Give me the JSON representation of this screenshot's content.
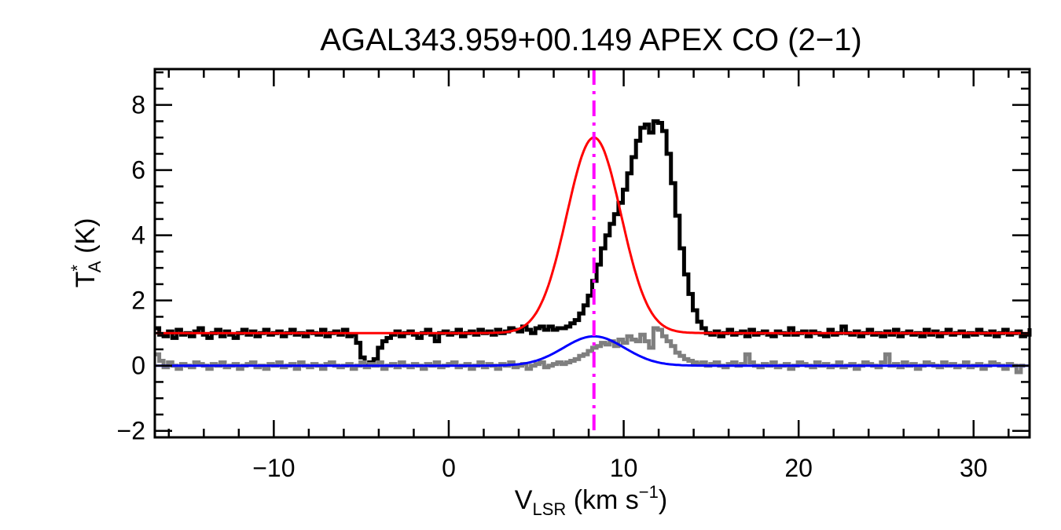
{
  "chart_data": {
    "type": "line",
    "title": "AGAL343.959+00.149  APEX CO (2−1)",
    "xlabel": {
      "main": "V",
      "sub": "LSR",
      "rest": " (km s",
      "sup": "−1",
      "end": ")"
    },
    "ylabel": {
      "main": "T",
      "sup": "*",
      "sub": "A",
      "rest": " (K)"
    },
    "xlim": [
      -16.8,
      33.2
    ],
    "ylim": [
      -2.2,
      9.1
    ],
    "xticks": [
      -10,
      0,
      10,
      20,
      30
    ],
    "xtick_labels": [
      "−10",
      "0",
      "10",
      "20",
      "30"
    ],
    "yticks": [
      -2,
      0,
      2,
      4,
      6,
      8
    ],
    "ytick_labels": [
      "−2",
      "0",
      "2",
      "4",
      "6",
      "8"
    ],
    "x_minor_step": 2,
    "y_minor_step": 0.5,
    "grid": false,
    "vline": {
      "x": 8.3,
      "color": "#ff00ff",
      "style": "dash-dot"
    },
    "series": [
      {
        "role": "spectrum-upper",
        "style": "step",
        "color": "#000000",
        "x_start": -16.8,
        "dx": 0.25,
        "values": [
          1.15,
          0.95,
          0.9,
          1.05,
          0.85,
          1.1,
          0.95,
          1.0,
          0.9,
          1.05,
          1.15,
          0.95,
          0.85,
          1.0,
          1.1,
          0.9,
          1.05,
          0.95,
          0.85,
          1.0,
          1.1,
          0.95,
          1.05,
          0.9,
          1.0,
          1.1,
          0.95,
          1.0,
          1.05,
          0.9,
          1.0,
          1.1,
          0.95,
          1.0,
          0.9,
          1.05,
          1.0,
          0.95,
          1.1,
          0.9,
          1.0,
          1.05,
          0.95,
          1.1,
          0.9,
          0.95,
          0.7,
          0.25,
          0.0,
          0.1,
          0.2,
          0.55,
          0.75,
          0.85,
          0.95,
          1.05,
          0.9,
          1.0,
          1.05,
          0.95,
          0.85,
          1.0,
          1.1,
          0.95,
          0.75,
          1.0,
          1.05,
          0.95,
          1.0,
          1.1,
          0.9,
          1.0,
          1.05,
          0.95,
          1.1,
          1.0,
          1.05,
          0.95,
          1.1,
          1.0,
          1.05,
          1.15,
          1.1,
          1.05,
          1.2,
          1.1,
          1.0,
          1.15,
          1.2,
          1.1,
          1.2,
          1.1,
          1.15,
          1.15,
          1.2,
          1.3,
          1.4,
          1.6,
          1.85,
          2.15,
          2.6,
          3.1,
          3.6,
          4.0,
          4.35,
          4.65,
          5.0,
          5.4,
          5.9,
          6.4,
          6.9,
          7.3,
          7.4,
          7.15,
          7.5,
          7.45,
          7.2,
          6.5,
          5.6,
          4.6,
          3.6,
          2.8,
          2.2,
          1.7,
          1.35,
          1.15,
          1.0,
          0.95,
          1.05,
          0.9,
          1.0,
          1.1,
          0.95,
          1.0,
          1.05,
          0.9,
          1.1,
          0.95,
          1.0,
          1.05,
          0.95,
          0.9,
          1.05,
          1.0,
          0.95,
          1.15,
          0.95,
          1.0,
          1.05,
          0.9,
          1.05,
          1.0,
          0.95,
          0.9,
          1.1,
          0.95,
          1.0,
          1.2,
          1.0,
          0.95,
          1.05,
          0.9,
          1.0,
          1.1,
          0.95,
          1.0,
          0.9,
          1.05,
          0.95,
          1.1,
          0.9,
          1.0,
          1.05,
          0.95,
          1.0,
          0.9,
          1.1,
          0.95,
          1.05,
          0.9,
          1.0,
          1.1,
          0.95,
          1.0,
          1.05,
          0.9,
          1.0,
          0.95,
          1.1,
          1.0,
          0.95,
          1.05,
          0.9,
          1.0,
          1.1,
          0.95,
          1.0,
          1.05,
          0.9,
          0.95,
          1.1,
          1.0,
          1.15,
          1.0
        ]
      },
      {
        "role": "spectrum-lower",
        "style": "step",
        "color": "#7f7f7f",
        "x_start": -16.8,
        "dx": 0.25,
        "values": [
          0.35,
          0.15,
          -0.05,
          0.1,
          0.0,
          -0.1,
          0.05,
          0.0,
          -0.05,
          0.1,
          0.05,
          0.0,
          -0.1,
          0.05,
          0.0,
          0.1,
          -0.05,
          0.0,
          0.05,
          -0.1,
          0.0,
          0.05,
          0.1,
          -0.05,
          0.0,
          -0.1,
          0.05,
          0.0,
          0.1,
          -0.05,
          0.0,
          0.05,
          -0.1,
          0.1,
          0.0,
          -0.05,
          0.05,
          0.0,
          -0.1,
          0.05,
          0.1,
          0.0,
          -0.05,
          0.0,
          0.05,
          -0.1,
          0.0,
          0.1,
          -0.05,
          0.05,
          0.0,
          0.1,
          -0.1,
          0.0,
          0.05,
          -0.05,
          0.1,
          0.0,
          -0.05,
          0.05,
          0.0,
          -0.1,
          0.05,
          0.0,
          0.1,
          -0.05,
          0.0,
          0.05,
          0.1,
          -0.05,
          0.0,
          0.05,
          -0.1,
          0.0,
          0.1,
          -0.05,
          0.05,
          0.0,
          -0.1,
          0.05,
          0.0,
          0.1,
          -0.05,
          0.0,
          0.05,
          -0.1,
          0.0,
          0.05,
          0.1,
          -0.05,
          0.0,
          0.05,
          0.1,
          0.05,
          0.1,
          0.15,
          0.2,
          0.3,
          0.35,
          0.45,
          0.55,
          0.6,
          0.7,
          0.65,
          0.75,
          0.6,
          0.8,
          0.7,
          0.9,
          0.8,
          0.75,
          0.95,
          0.75,
          0.55,
          1.15,
          1.1,
          0.9,
          0.75,
          0.6,
          0.4,
          0.3,
          0.2,
          0.15,
          0.1,
          0.05,
          0.1,
          0.0,
          0.05,
          0.1,
          0.0,
          -0.05,
          0.05,
          0.1,
          0.0,
          0.05,
          0.35,
          0.1,
          0.0,
          -0.05,
          0.05,
          0.0,
          0.1,
          -0.05,
          0.0,
          0.05,
          -0.1,
          0.0,
          0.1,
          0.05,
          0.0,
          -0.05,
          0.1,
          0.0,
          0.05,
          -0.05,
          0.0,
          0.1,
          -0.05,
          0.0,
          0.05,
          -0.1,
          0.0,
          0.1,
          0.05,
          0.0,
          -0.05,
          0.1,
          0.35,
          0.0,
          0.05,
          -0.05,
          0.1,
          0.0,
          0.05,
          -0.1,
          0.0,
          0.1,
          0.05,
          0.0,
          -0.05,
          0.1,
          0.0,
          0.05,
          -0.05,
          0.0,
          0.1,
          -0.05,
          0.0,
          0.05,
          -0.1,
          0.0,
          0.1,
          0.05,
          0.0,
          -0.1,
          0.05,
          0.0,
          -0.2,
          0.0
        ]
      },
      {
        "role": "gaussian-fit-upper",
        "style": "gaussian",
        "color": "#ff0000",
        "baseline": 1.0,
        "amplitude": 6.0,
        "center": 8.3,
        "sigma": 1.55
      },
      {
        "role": "gaussian-fit-lower",
        "style": "gaussian",
        "color": "#0000ff",
        "baseline": 0.0,
        "amplitude": 0.9,
        "center": 8.3,
        "sigma": 1.75
      }
    ]
  }
}
